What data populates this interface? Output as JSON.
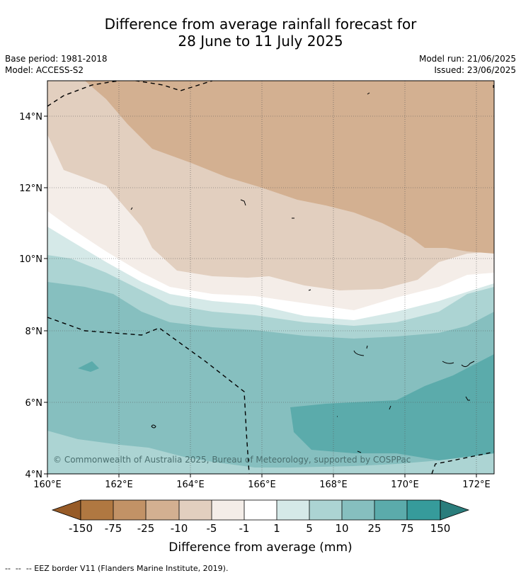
{
  "title": {
    "line1": "Difference from average rainfall forecast for",
    "line2": "28 June to 11 July 2025"
  },
  "meta_left": {
    "base_period": "Base period: 1981-2018",
    "model": "Model: ACCESS-S2"
  },
  "meta_right": {
    "model_run": "Model run: 21/06/2025",
    "issued": "Issued: 23/06/2025"
  },
  "map": {
    "y_tick_labels": [
      "14°N",
      "12°N",
      "10°N",
      "8°N",
      "6°N",
      "4°N"
    ],
    "x_tick_labels": [
      "160°E",
      "162°E",
      "164°E",
      "166°E",
      "168°E",
      "170°E",
      "172°E"
    ],
    "copyright": "© Commonwealth of Australia 2025, Bureau of Meteorology, supported by COSPPac",
    "colors": {
      "c_150": "#975b27",
      "c_75": "#b07841",
      "c_25": "#c29266",
      "c_10": "#d3b091",
      "c_5": "#e2cfbf",
      "c_1": "#f4ede8",
      "c0": "#ffffff",
      "c1": "#d5e9e8",
      "c5": "#acd4d3",
      "c10": "#86bfbf",
      "c25": "#5babab",
      "c75": "#369b9b",
      "c150": "#2a7d7c"
    }
  },
  "colorbar": {
    "tick_labels": [
      "-150",
      "-75",
      "-25",
      "-10",
      "-5",
      "-1",
      "1",
      "5",
      "10",
      "25",
      "75",
      "150"
    ],
    "label": "Difference from average (mm)"
  },
  "footer": {
    "legend_text": "--  --  -- EEZ border V11 (Flanders Marine Institute, 2019)."
  }
}
